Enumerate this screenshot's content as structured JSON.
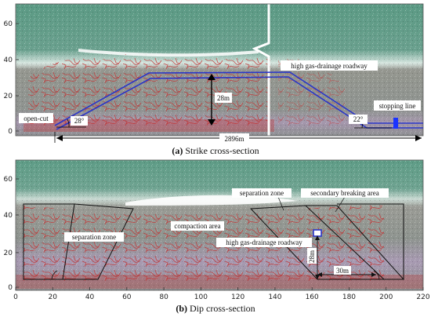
{
  "panel_a": {
    "caption_letter": "(a)",
    "caption_text": "Strike cross-section",
    "y_ticks": [
      "0",
      "20",
      "40",
      "60"
    ],
    "labels": {
      "open_cut": "open-cut",
      "angle_left": "28°",
      "height": "28m",
      "roadway": "high gas-drainage roadway",
      "stopping_line": "stopping line",
      "angle_right": "22°",
      "length": "2896m"
    }
  },
  "panel_b": {
    "caption_letter": "(b)",
    "caption_text": "Dip cross-section",
    "y_ticks": [
      "0",
      "20",
      "40",
      "60"
    ],
    "x_ticks": [
      "0",
      "20",
      "40",
      "60",
      "80",
      "100",
      "120",
      "140",
      "160",
      "180",
      "200",
      "220"
    ],
    "labels": {
      "separation_zone_left": "separation zone",
      "separation_zone_right": "separation zone",
      "secondary_breaking": "secondary breaking area",
      "compaction": "compaction area",
      "roadway": "high gas-drainage roadway",
      "height": "28m",
      "width": "30m"
    }
  },
  "colors": {
    "strata_top": "#5e9c86",
    "strata_mid": "#8e948f",
    "strata_purple": "#a89ab2",
    "fracture": "#c23232",
    "roadway_line": "#2a36c8",
    "stopping_marker": "#1a33ff"
  }
}
